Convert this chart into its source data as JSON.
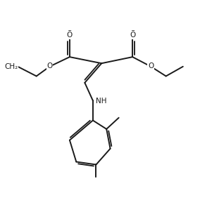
{
  "bg_color": "#ffffff",
  "line_color": "#1a1a1a",
  "line_width": 1.4,
  "font_size": 7.5,
  "xlim": [
    0,
    10
  ],
  "ylim": [
    0,
    10
  ]
}
